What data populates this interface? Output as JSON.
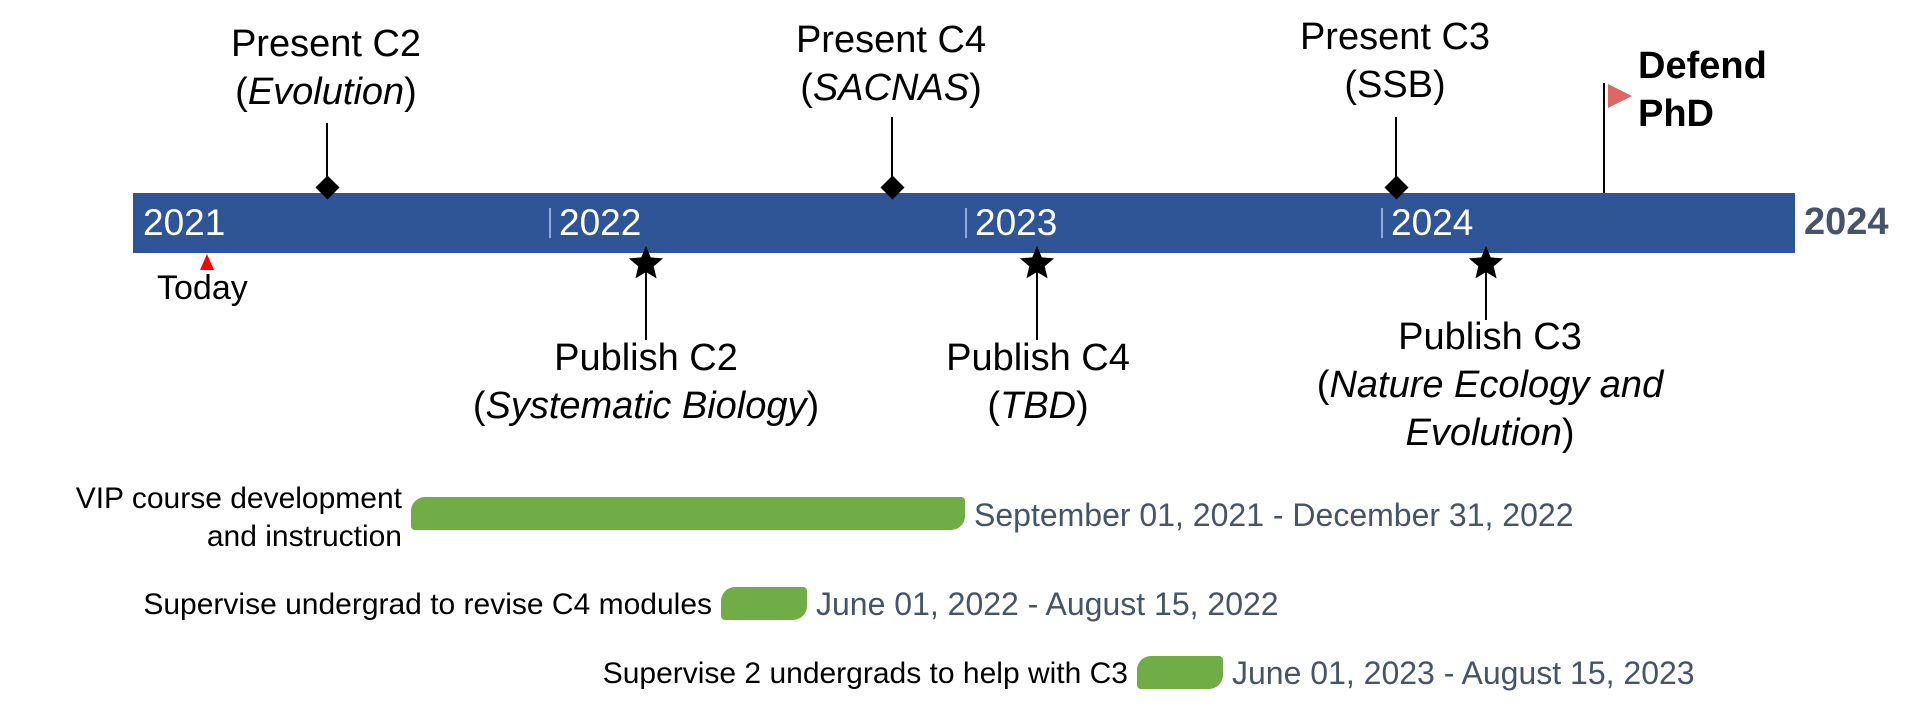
{
  "timeline": {
    "years": [
      "2021",
      "2022",
      "2023",
      "2024"
    ],
    "end_year": "2024",
    "today_label": "Today",
    "colors": {
      "bar": "#2F5597",
      "task": "#70AD47",
      "today_marker": "#FF0000",
      "flag": "#E06666",
      "date_text": "#44546A"
    }
  },
  "milestones_above": [
    {
      "name": "Present C2",
      "venue": "Evolution"
    },
    {
      "name": "Present C4",
      "venue": "SACNAS"
    },
    {
      "name": "Present C3",
      "venue": "SSB"
    }
  ],
  "flag_milestone": {
    "line1": "Defend",
    "line2": "PhD"
  },
  "milestones_below": [
    {
      "name": "Publish C2",
      "venue": "Systematic Biology"
    },
    {
      "name": "Publish C4",
      "venue": "TBD"
    },
    {
      "name": "Publish C3",
      "venue_line1": "Nature Ecology and",
      "venue_line2": "Evolution"
    }
  ],
  "tasks": [
    {
      "label_line1": "VIP course development",
      "label_line2": "and instruction",
      "dates": "September 01, 2021 - December 31, 2022"
    },
    {
      "label": "Supervise undergrad to revise C4 modules",
      "dates": "June 01, 2022 - August 15, 2022"
    },
    {
      "label": "Supervise 2 undergrads to help with C3",
      "dates": "June 01, 2023 - August 15, 2023"
    }
  ]
}
